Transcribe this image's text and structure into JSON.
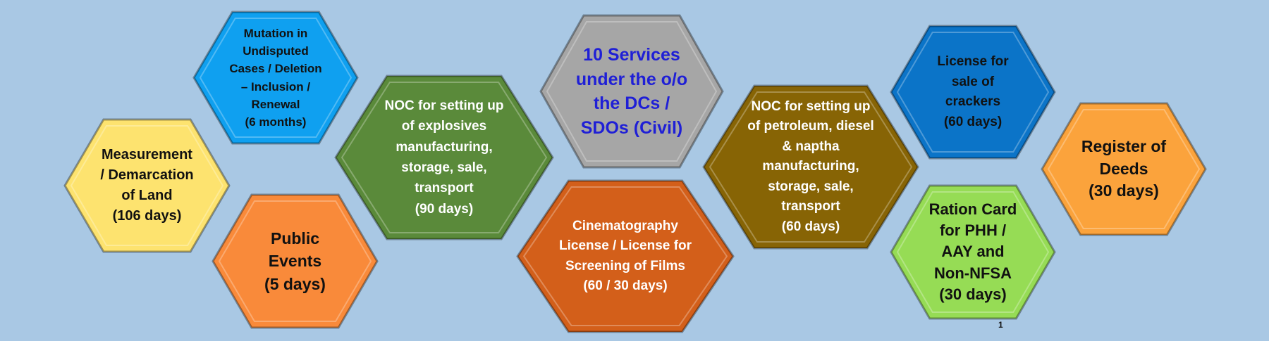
{
  "hexagons": [
    {
      "id": "center",
      "text": "10 Services\nunder the o/o\nthe DCs  /\nSDOs (Civil)",
      "fill": "#a6a6a6",
      "text_color": "#1f1fd6"
    },
    {
      "id": "mutation",
      "text": "Mutation in\nUndisputed\nCases / Deletion\n– Inclusion  /\nRenewal\n(6 months)",
      "fill": "#0fa0f0",
      "text_color": "#111111"
    },
    {
      "id": "measurement",
      "text": "Measurement\n/ Demarcation\nof Land\n(106 days)",
      "fill": "#fde36f",
      "text_color": "#111111"
    },
    {
      "id": "public-events",
      "text": "Public\nEvents\n(5 days)",
      "fill": "#f98a3a",
      "text_color": "#111111"
    },
    {
      "id": "noc-explosives",
      "text": "NOC for setting up\nof explosives\nmanufacturing,\nstorage, sale,\ntransport\n(90 days)",
      "fill": "#5a8a3a",
      "text_color": "#ffffff"
    },
    {
      "id": "cinematography",
      "text": "Cinematography\nLicense / License for\nScreening of Films\n(60 / 30 days)",
      "fill": "#d35f1a",
      "text_color": "#ffffff"
    },
    {
      "id": "noc-petroleum",
      "text": "NOC for setting up\nof petroleum, diesel\n& naptha\nmanufacturing,\nstorage, sale,\ntransport\n(60 days)",
      "fill": "#876405",
      "text_color": "#ffffff"
    },
    {
      "id": "crackers",
      "text": "License for\nsale of\ncrackers\n(60 days)",
      "fill": "#0b74c8",
      "text_color": "#111111"
    },
    {
      "id": "ration-card",
      "text": "Ration Card\nfor PHH /\nAAY and\nNon-NFSA\n(30 days)",
      "fill": "#96dc55",
      "text_color": "#111111"
    },
    {
      "id": "register-deeds",
      "text": "Register of\nDeeds\n(30 days)",
      "fill": "#fba33c",
      "text_color": "#111111"
    }
  ],
  "page_number": "1"
}
